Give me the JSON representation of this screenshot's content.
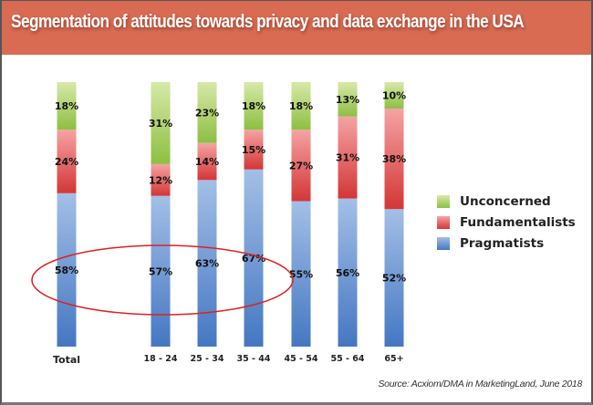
{
  "header": {
    "title": "Segmentation of attitudes towards privacy and data exchange in the USA"
  },
  "source": "Source: Acxiom/DMA in MarketingLand, June 2018",
  "colors": {
    "header_bg": "#d86b52",
    "unconcerned": "#9cc75a",
    "fundamentalists": "#e05555",
    "pragmatists": "#5b8fd2",
    "highlight": "#e02020"
  },
  "chart_data": {
    "type": "bar",
    "stacked": true,
    "title": "Segmentation of attitudes towards privacy and data exchange in the USA",
    "xlabel": "",
    "ylabel": "",
    "ylim": [
      0,
      100
    ],
    "categories": [
      "Total",
      "18 - 24",
      "25 - 34",
      "35 - 44",
      "45 - 54",
      "55 - 64",
      "65+"
    ],
    "series": [
      {
        "name": "Pragmatists",
        "values": [
          58,
          57,
          63,
          67,
          55,
          56,
          52
        ]
      },
      {
        "name": "Fundamentalists",
        "values": [
          24,
          12,
          14,
          15,
          27,
          31,
          38
        ]
      },
      {
        "name": "Unconcerned",
        "values": [
          18,
          31,
          23,
          18,
          18,
          13,
          10
        ]
      }
    ],
    "legend": {
      "placement": "right",
      "entries": [
        "Unconcerned",
        "Fundamentalists",
        "Pragmatists"
      ]
    },
    "annotations": [
      {
        "type": "ellipse",
        "label": "highlight",
        "covers": [
          "Total",
          "18 - 24",
          "25 - 34",
          "35 - 44"
        ],
        "series": "Pragmatists"
      }
    ],
    "grid": false
  }
}
